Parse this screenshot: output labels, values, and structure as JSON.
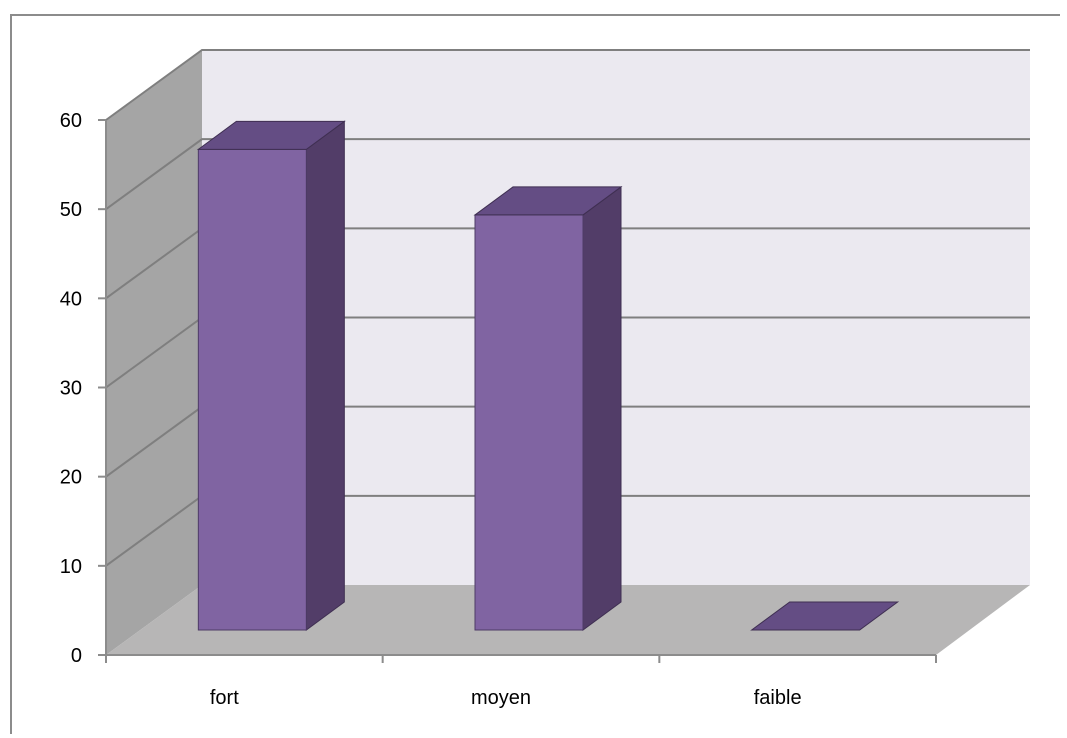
{
  "chart_data": {
    "type": "bar",
    "style": "3d-column",
    "categories": [
      "fort",
      "moyen",
      "faible"
    ],
    "values": [
      55,
      47.5,
      0
    ],
    "ylim": [
      0,
      60
    ],
    "yticks": [
      0,
      10,
      20,
      30,
      40,
      50,
      60
    ],
    "grid": true,
    "legend": "none",
    "colors": {
      "bar_front": "#8064a2",
      "bar_top": "#644d84",
      "bar_side": "#523d68",
      "back_wall": "#ebe9f0",
      "side_wall": "#a5a5a5",
      "floor": "#b7b6b6",
      "gridline": "#7f7f7f"
    }
  }
}
